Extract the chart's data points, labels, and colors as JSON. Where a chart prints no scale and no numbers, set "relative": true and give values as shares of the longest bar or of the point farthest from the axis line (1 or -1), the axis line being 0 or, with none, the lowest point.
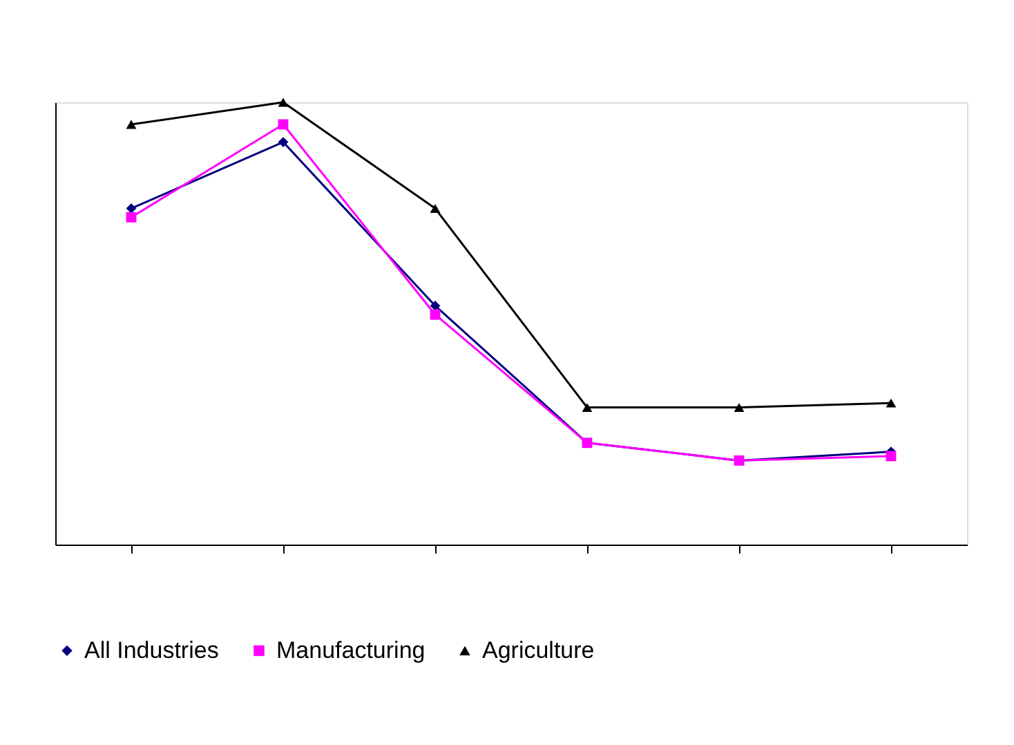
{
  "chart_data": {
    "type": "line",
    "relative": true,
    "categories": [
      null,
      null,
      null,
      null,
      null,
      null
    ],
    "legend": "bottom",
    "grid": false,
    "line_style": "solid",
    "series": [
      {
        "name": "All Industries",
        "color": "#000080",
        "marker": "diamond",
        "values": [
          0.76,
          0.91,
          0.54,
          0.23,
          0.19,
          0.21
        ]
      },
      {
        "name": "Manufacturing",
        "color": "#ff00ff",
        "marker": "square",
        "values": [
          0.74,
          0.95,
          0.52,
          0.23,
          0.19,
          0.2
        ]
      },
      {
        "name": "Agriculture",
        "color": "#000000",
        "marker": "triangle",
        "values": [
          0.95,
          1,
          0.76,
          0.31,
          0.31,
          0.32
        ]
      }
    ]
  }
}
